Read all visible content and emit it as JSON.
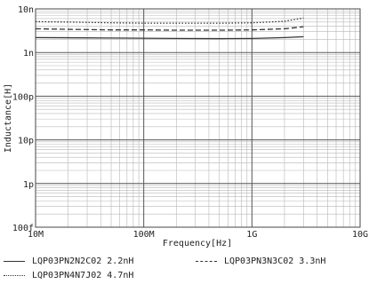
{
  "chart_data": {
    "type": "line",
    "xlabel": "Frequency[Hz]",
    "ylabel": "Inductance[H]",
    "x_scale": "log",
    "y_scale": "log",
    "xlim": [
      10000000.0,
      10000000000.0
    ],
    "ylim": [
      1e-13,
      1e-08
    ],
    "x_ticks": [
      {
        "value": 10000000.0,
        "label": "10M"
      },
      {
        "value": 100000000.0,
        "label": "100M"
      },
      {
        "value": 1000000000.0,
        "label": "1G"
      },
      {
        "value": 10000000000.0,
        "label": "10G"
      }
    ],
    "y_ticks": [
      {
        "value": 1e-08,
        "label": "10n"
      },
      {
        "value": 1e-09,
        "label": "1n"
      },
      {
        "value": 1e-10,
        "label": "100p"
      },
      {
        "value": 1e-11,
        "label": "10p"
      },
      {
        "value": 1e-12,
        "label": "1p"
      },
      {
        "value": 1e-13,
        "label": "100f"
      }
    ],
    "grid": true,
    "legend_position": "bottom",
    "series": [
      {
        "name": "LQP03PN2N2C02 2.2nH",
        "style": "solid",
        "color": "#333333",
        "x": [
          10000000.0,
          20000000.0,
          50000000.0,
          100000000.0,
          200000000.0,
          500000000.0,
          1000000000.0,
          2000000000.0,
          3000000000.0
        ],
        "y": [
          2.2e-09,
          2.18e-09,
          2.15e-09,
          2.12e-09,
          2.1e-09,
          2.08e-09,
          2.1e-09,
          2.2e-09,
          2.3e-09
        ]
      },
      {
        "name": "LQP03PN3N3C02 3.3nH",
        "style": "dashed",
        "color": "#333333",
        "x": [
          10000000.0,
          20000000.0,
          50000000.0,
          100000000.0,
          200000000.0,
          500000000.0,
          1000000000.0,
          2000000000.0,
          3000000000.0
        ],
        "y": [
          3.5e-09,
          3.4e-09,
          3.3e-09,
          3.3e-09,
          3.25e-09,
          3.25e-09,
          3.3e-09,
          3.5e-09,
          3.9e-09
        ]
      },
      {
        "name": "LQP03PN4N7J02 4.7nH",
        "style": "dotted",
        "color": "#333333",
        "x": [
          10000000.0,
          20000000.0,
          50000000.0,
          100000000.0,
          200000000.0,
          500000000.0,
          1000000000.0,
          2000000000.0,
          3000000000.0
        ],
        "y": [
          5.1e-09,
          5e-09,
          4.8e-09,
          4.7e-09,
          4.7e-09,
          4.7e-09,
          4.8e-09,
          5.2e-09,
          6.2e-09
        ]
      }
    ]
  }
}
